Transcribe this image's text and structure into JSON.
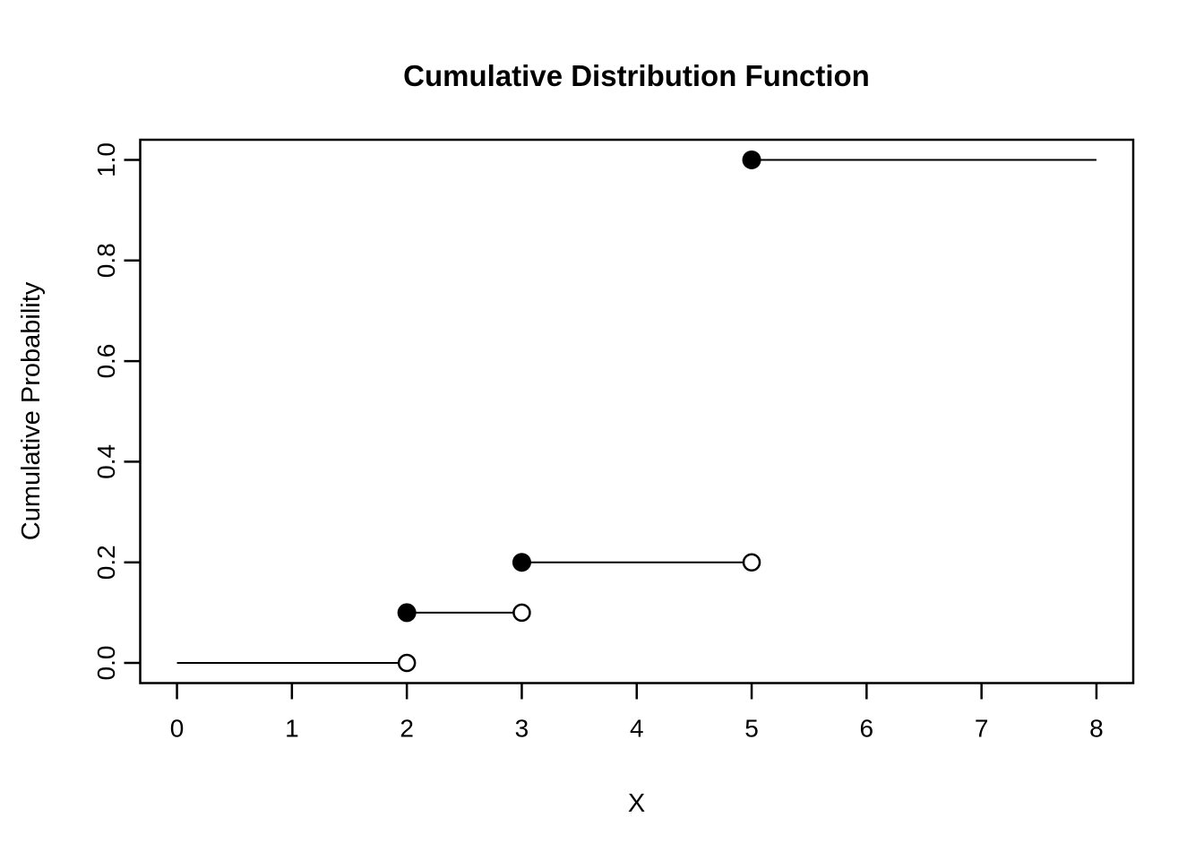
{
  "chart_data": {
    "type": "step",
    "title": "Cumulative Distribution Function",
    "xlabel": "X",
    "ylabel": "Cumulative Probability",
    "xlim": [
      -0.32,
      8.32
    ],
    "ylim": [
      -0.04,
      1.04
    ],
    "grid": false,
    "legend": "none",
    "xticks": [
      {
        "value": 0,
        "label": "0"
      },
      {
        "value": 1,
        "label": "1"
      },
      {
        "value": 2,
        "label": "2"
      },
      {
        "value": 3,
        "label": "3"
      },
      {
        "value": 4,
        "label": "4"
      },
      {
        "value": 5,
        "label": "5"
      },
      {
        "value": 6,
        "label": "6"
      },
      {
        "value": 7,
        "label": "7"
      },
      {
        "value": 8,
        "label": "8"
      }
    ],
    "yticks": [
      {
        "value": 0.0,
        "label": "0.0"
      },
      {
        "value": 0.2,
        "label": "0.2"
      },
      {
        "value": 0.4,
        "label": "0.4"
      },
      {
        "value": 0.6,
        "label": "0.6"
      },
      {
        "value": 0.8,
        "label": "0.8"
      },
      {
        "value": 1.0,
        "label": "1.0"
      }
    ],
    "segments": [
      {
        "x_start": 0,
        "x_end": 2,
        "y": 0.0,
        "start_marker": "none",
        "end_marker": "open"
      },
      {
        "x_start": 2,
        "x_end": 3,
        "y": 0.1,
        "start_marker": "filled",
        "end_marker": "open"
      },
      {
        "x_start": 3,
        "x_end": 5,
        "y": 0.2,
        "start_marker": "filled",
        "end_marker": "open"
      },
      {
        "x_start": 5,
        "x_end": 8,
        "y": 1.0,
        "start_marker": "filled",
        "end_marker": "none"
      }
    ],
    "jump_points": [
      {
        "x": 2,
        "cdf": 0.1
      },
      {
        "x": 3,
        "cdf": 0.2
      },
      {
        "x": 5,
        "cdf": 1.0
      }
    ],
    "colors": {
      "line": "#000000",
      "box": "#000000",
      "marker_filled": "#000000",
      "marker_open_fill": "#ffffff",
      "background": "#ffffff"
    }
  }
}
